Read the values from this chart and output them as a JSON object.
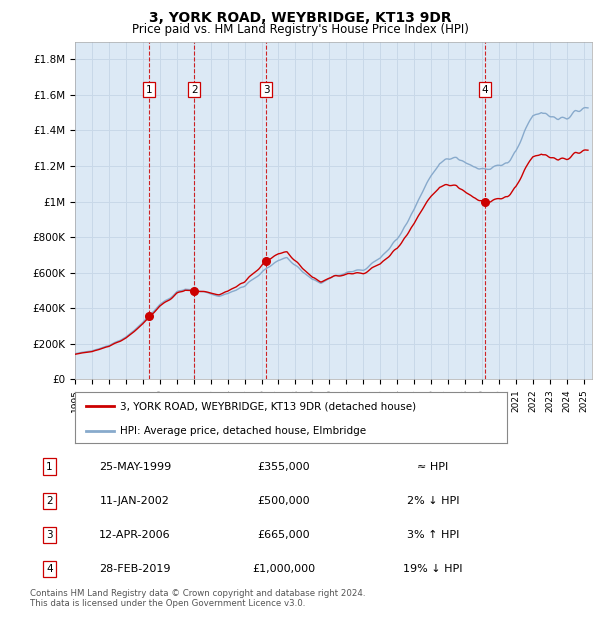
{
  "title": "3, YORK ROAD, WEYBRIDGE, KT13 9DR",
  "subtitle": "Price paid vs. HM Land Registry's House Price Index (HPI)",
  "ylabel_ticks": [
    "£0",
    "£200K",
    "£400K",
    "£600K",
    "£800K",
    "£1M",
    "£1.2M",
    "£1.4M",
    "£1.6M",
    "£1.8M"
  ],
  "ytick_values": [
    0,
    200000,
    400000,
    600000,
    800000,
    1000000,
    1200000,
    1400000,
    1600000,
    1800000
  ],
  "ylim": [
    0,
    1900000
  ],
  "xlim_start": 1995.0,
  "xlim_end": 2025.5,
  "sales": [
    {
      "num": 1,
      "date_label": "25-MAY-1999",
      "year": 1999.38,
      "price": 355000,
      "hpi_rel": "≈ HPI"
    },
    {
      "num": 2,
      "date_label": "11-JAN-2002",
      "year": 2002.03,
      "price": 500000,
      "hpi_rel": "2% ↓ HPI"
    },
    {
      "num": 3,
      "date_label": "12-APR-2006",
      "year": 2006.28,
      "price": 665000,
      "hpi_rel": "3% ↑ HPI"
    },
    {
      "num": 4,
      "date_label": "28-FEB-2019",
      "year": 2019.16,
      "price": 1000000,
      "hpi_rel": "19% ↓ HPI"
    }
  ],
  "legend_label_red": "3, YORK ROAD, WEYBRIDGE, KT13 9DR (detached house)",
  "legend_label_blue": "HPI: Average price, detached house, Elmbridge",
  "footer": "Contains HM Land Registry data © Crown copyright and database right 2024.\nThis data is licensed under the Open Government Licence v3.0.",
  "background_color": "#dce9f5",
  "plot_bg_color": "#ffffff",
  "grid_color": "#c8d8e8",
  "red_line_color": "#cc0000",
  "blue_line_color": "#88aacc"
}
